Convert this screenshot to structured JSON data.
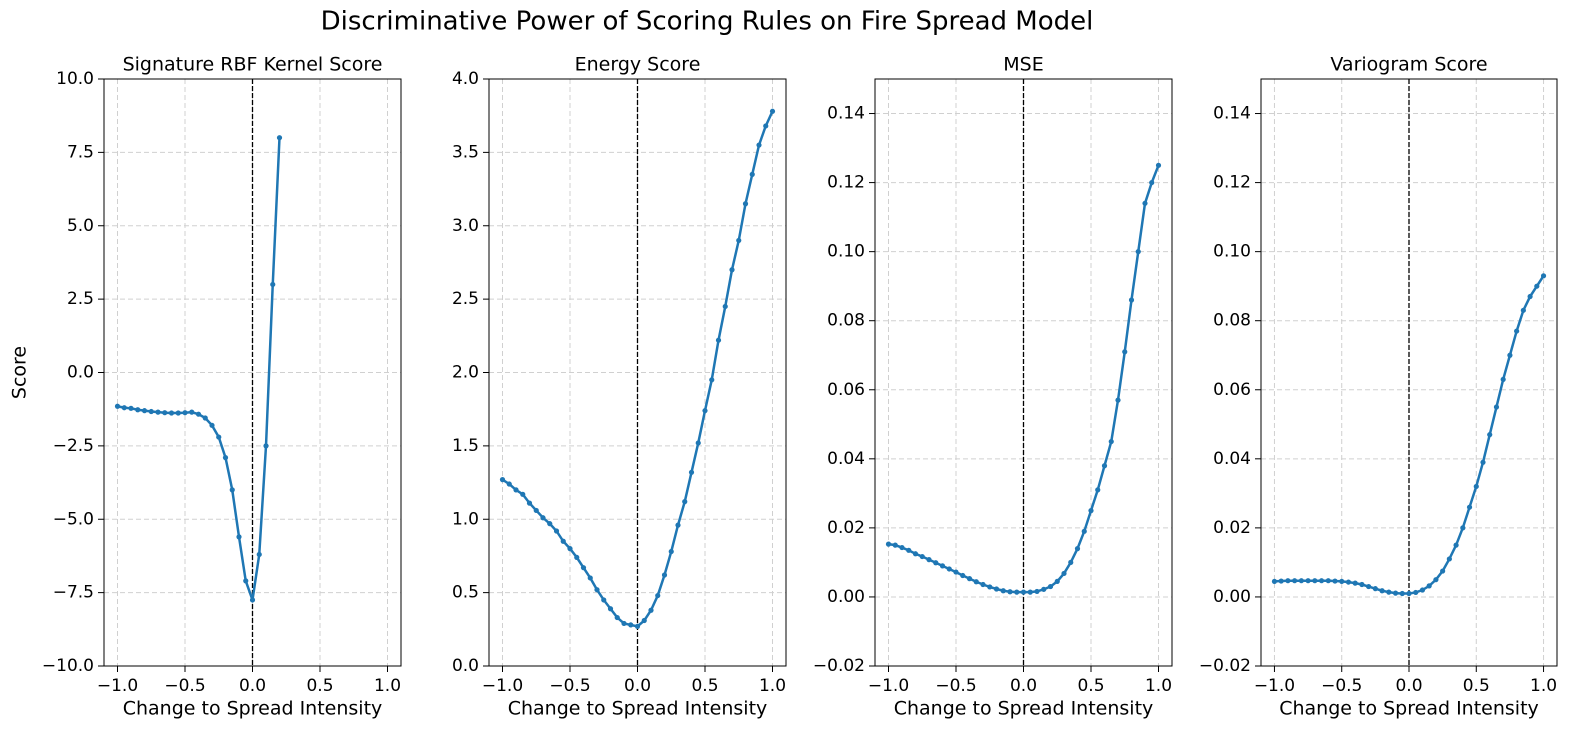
{
  "title": "Discriminative Power of Scoring Rules on Fire Spread Model",
  "chart_data": [
    {
      "type": "line",
      "title": "Signature RBF Kernel Score",
      "xlabel": "Change to Spread Intensity",
      "ylabel": "Score",
      "x": [
        -1,
        -0.95,
        -0.9,
        -0.85,
        -0.8,
        -0.75,
        -0.7,
        -0.65,
        -0.6,
        -0.55,
        -0.5,
        -0.45,
        -0.4,
        -0.35,
        -0.3,
        -0.25,
        -0.2,
        -0.15,
        -0.1,
        -0.05,
        0,
        0.05,
        0.1,
        0.15,
        0.2,
        0.25,
        0.3,
        0.35,
        0.4,
        0.45,
        0.5,
        0.55,
        0.6,
        0.65,
        0.7,
        0.75,
        0.8,
        0.85,
        0.9,
        0.95,
        1
      ],
      "series": [
        {
          "color": "#1f77b4",
          "values": [
            -1.15,
            -1.2,
            -1.22,
            -1.27,
            -1.3,
            -1.33,
            -1.35,
            -1.37,
            -1.38,
            -1.38,
            -1.37,
            -1.35,
            -1.42,
            -1.55,
            -1.8,
            -2.2,
            -2.9,
            -4.0,
            -5.6,
            -7.1,
            -7.75,
            -6.2,
            -2.5,
            3.0,
            8.0,
            null,
            null,
            null,
            null,
            null,
            null,
            null,
            null,
            null,
            null,
            null,
            null,
            null,
            null,
            null,
            null
          ]
        }
      ],
      "xlim": [
        -1.1,
        1.1
      ],
      "xticks": [
        {
          "value": -1,
          "label": "−1.0"
        },
        {
          "value": -0.5,
          "label": "−0.5"
        },
        {
          "value": 0,
          "label": "0.0"
        },
        0.5,
        {
          "value": 1,
          "label": "1.0"
        }
      ],
      "ylim": [
        -10,
        10
      ],
      "yticks": [
        {
          "value": -10,
          "label": "−10.0"
        },
        {
          "value": -7.5,
          "label": "−7.5"
        },
        {
          "value": -5,
          "label": "−5.0"
        },
        {
          "value": -2.5,
          "label": "−2.5"
        },
        {
          "value": 0,
          "label": "0.0"
        },
        2.5,
        {
          "value": 5,
          "label": "5.0"
        },
        7.5,
        {
          "value": 10,
          "label": "10.0"
        }
      ],
      "grid": true,
      "vline": 0
    },
    {
      "type": "line",
      "title": "Energy Score",
      "xlabel": "Change to Spread Intensity",
      "x": [
        -1,
        -0.95,
        -0.9,
        -0.85,
        -0.8,
        -0.75,
        -0.7,
        -0.65,
        -0.6,
        -0.55,
        -0.5,
        -0.45,
        -0.4,
        -0.35,
        -0.3,
        -0.25,
        -0.2,
        -0.15,
        -0.1,
        -0.05,
        0,
        0.05,
        0.1,
        0.15,
        0.2,
        0.25,
        0.3,
        0.35,
        0.4,
        0.45,
        0.5,
        0.55,
        0.6,
        0.65,
        0.7,
        0.75,
        0.8,
        0.85,
        0.9,
        0.95,
        1
      ],
      "series": [
        {
          "color": "#1f77b4",
          "values": [
            1.27,
            1.24,
            1.2,
            1.17,
            1.11,
            1.06,
            1.01,
            0.97,
            0.92,
            0.85,
            0.8,
            0.74,
            0.67,
            0.6,
            0.52,
            0.45,
            0.39,
            0.33,
            0.29,
            0.28,
            0.27,
            0.31,
            0.38,
            0.48,
            0.62,
            0.78,
            0.96,
            1.12,
            1.32,
            1.52,
            1.74,
            1.95,
            2.22,
            2.45,
            2.7,
            2.9,
            3.15,
            3.35,
            3.55,
            3.68,
            3.78
          ]
        }
      ],
      "xlim": [
        -1.1,
        1.1
      ],
      "xticks": [
        {
          "value": -1,
          "label": "−1.0"
        },
        {
          "value": -0.5,
          "label": "−0.5"
        },
        {
          "value": 0,
          "label": "0.0"
        },
        0.5,
        {
          "value": 1,
          "label": "1.0"
        }
      ],
      "ylim": [
        0,
        4
      ],
      "yticks": [
        {
          "value": 0,
          "label": "0.0"
        },
        0.5,
        {
          "value": 1,
          "label": "1.0"
        },
        1.5,
        {
          "value": 2,
          "label": "2.0"
        },
        2.5,
        {
          "value": 3,
          "label": "3.0"
        },
        3.5,
        {
          "value": 4,
          "label": "4.0"
        }
      ],
      "grid": true,
      "vline": 0
    },
    {
      "type": "line",
      "title": "MSE",
      "xlabel": "Change to Spread Intensity",
      "x": [
        -1,
        -0.95,
        -0.9,
        -0.85,
        -0.8,
        -0.75,
        -0.7,
        -0.65,
        -0.6,
        -0.55,
        -0.5,
        -0.45,
        -0.4,
        -0.35,
        -0.3,
        -0.25,
        -0.2,
        -0.15,
        -0.1,
        -0.05,
        0,
        0.05,
        0.1,
        0.15,
        0.2,
        0.25,
        0.3,
        0.35,
        0.4,
        0.45,
        0.5,
        0.55,
        0.6,
        0.65,
        0.7,
        0.75,
        0.8,
        0.85,
        0.9,
        0.95,
        1
      ],
      "series": [
        {
          "color": "#1f77b4",
          "values": [
            0.0153,
            0.015,
            0.0143,
            0.0135,
            0.0125,
            0.0117,
            0.0108,
            0.0099,
            0.009,
            0.0081,
            0.0072,
            0.0062,
            0.0053,
            0.0044,
            0.0036,
            0.0029,
            0.0023,
            0.0018,
            0.0015,
            0.0014,
            0.0014,
            0.0014,
            0.0016,
            0.0022,
            0.003,
            0.0045,
            0.0068,
            0.01,
            0.014,
            0.019,
            0.025,
            0.031,
            0.038,
            0.045,
            0.057,
            0.071,
            0.086,
            0.1,
            0.114,
            0.12,
            0.125
          ]
        }
      ],
      "xlim": [
        -1.1,
        1.1
      ],
      "xticks": [
        {
          "value": -1,
          "label": "−1.0"
        },
        {
          "value": -0.5,
          "label": "−0.5"
        },
        {
          "value": 0,
          "label": "0.0"
        },
        0.5,
        {
          "value": 1,
          "label": "1.0"
        }
      ],
      "ylim": [
        -0.02,
        0.15
      ],
      "yticks": [
        {
          "value": -0.02,
          "label": "−0.02"
        },
        {
          "value": 0,
          "label": "0.00"
        },
        0.02,
        0.04,
        0.06,
        0.08,
        {
          "value": 0.1,
          "label": "0.10"
        },
        0.12,
        0.14
      ],
      "grid": true,
      "vline": 0
    },
    {
      "type": "line",
      "title": "Variogram Score",
      "xlabel": "Change to Spread Intensity",
      "x": [
        -1,
        -0.95,
        -0.9,
        -0.85,
        -0.8,
        -0.75,
        -0.7,
        -0.65,
        -0.6,
        -0.55,
        -0.5,
        -0.45,
        -0.4,
        -0.35,
        -0.3,
        -0.25,
        -0.2,
        -0.15,
        -0.1,
        -0.05,
        0,
        0.05,
        0.1,
        0.15,
        0.2,
        0.25,
        0.3,
        0.35,
        0.4,
        0.45,
        0.5,
        0.55,
        0.6,
        0.65,
        0.7,
        0.75,
        0.8,
        0.85,
        0.9,
        0.95,
        1
      ],
      "series": [
        {
          "color": "#1f77b4",
          "values": [
            0.0045,
            0.0046,
            0.0047,
            0.0047,
            0.0047,
            0.0047,
            0.0047,
            0.0047,
            0.0047,
            0.0046,
            0.0045,
            0.0043,
            0.004,
            0.0036,
            0.003,
            0.0024,
            0.0018,
            0.0014,
            0.0011,
            0.001,
            0.001,
            0.0013,
            0.002,
            0.0032,
            0.005,
            0.0075,
            0.011,
            0.015,
            0.02,
            0.026,
            0.032,
            0.039,
            0.047,
            0.055,
            0.063,
            0.07,
            0.077,
            0.083,
            0.087,
            0.09,
            0.093
          ]
        }
      ],
      "xlim": [
        -1.1,
        1.1
      ],
      "xticks": [
        {
          "value": -1,
          "label": "−1.0"
        },
        {
          "value": -0.5,
          "label": "−0.5"
        },
        {
          "value": 0,
          "label": "0.0"
        },
        0.5,
        {
          "value": 1,
          "label": "1.0"
        }
      ],
      "ylim": [
        -0.02,
        0.15
      ],
      "yticks": [
        {
          "value": -0.02,
          "label": "−0.02"
        },
        {
          "value": 0,
          "label": "0.00"
        },
        0.02,
        0.04,
        0.06,
        0.08,
        {
          "value": 0.1,
          "label": "0.10"
        },
        0.12,
        0.14
      ],
      "grid": true,
      "vline": 0
    }
  ]
}
